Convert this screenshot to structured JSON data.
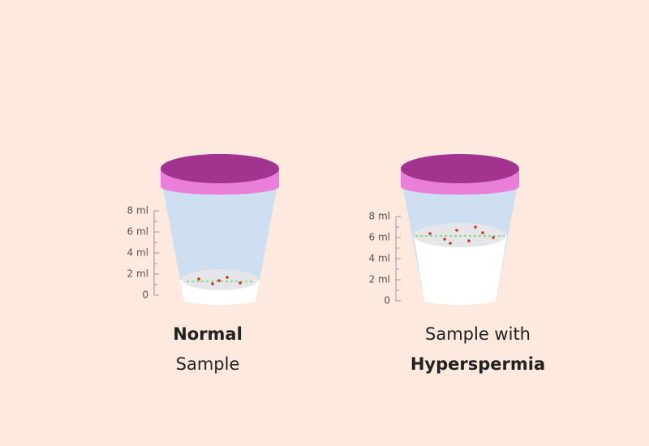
{
  "cups": [
    {
      "scale": [
        "8 ml",
        "6 ml",
        "4 ml",
        "2 ml",
        "0"
      ],
      "caption": {
        "first": "Normal",
        "second": "Sample"
      }
    },
    {
      "scale": [
        "8 ml",
        "6 ml",
        "4 ml",
        "2 ml",
        "0"
      ],
      "caption": {
        "first": "Sample with",
        "second": "Hyperspermia"
      }
    }
  ]
}
